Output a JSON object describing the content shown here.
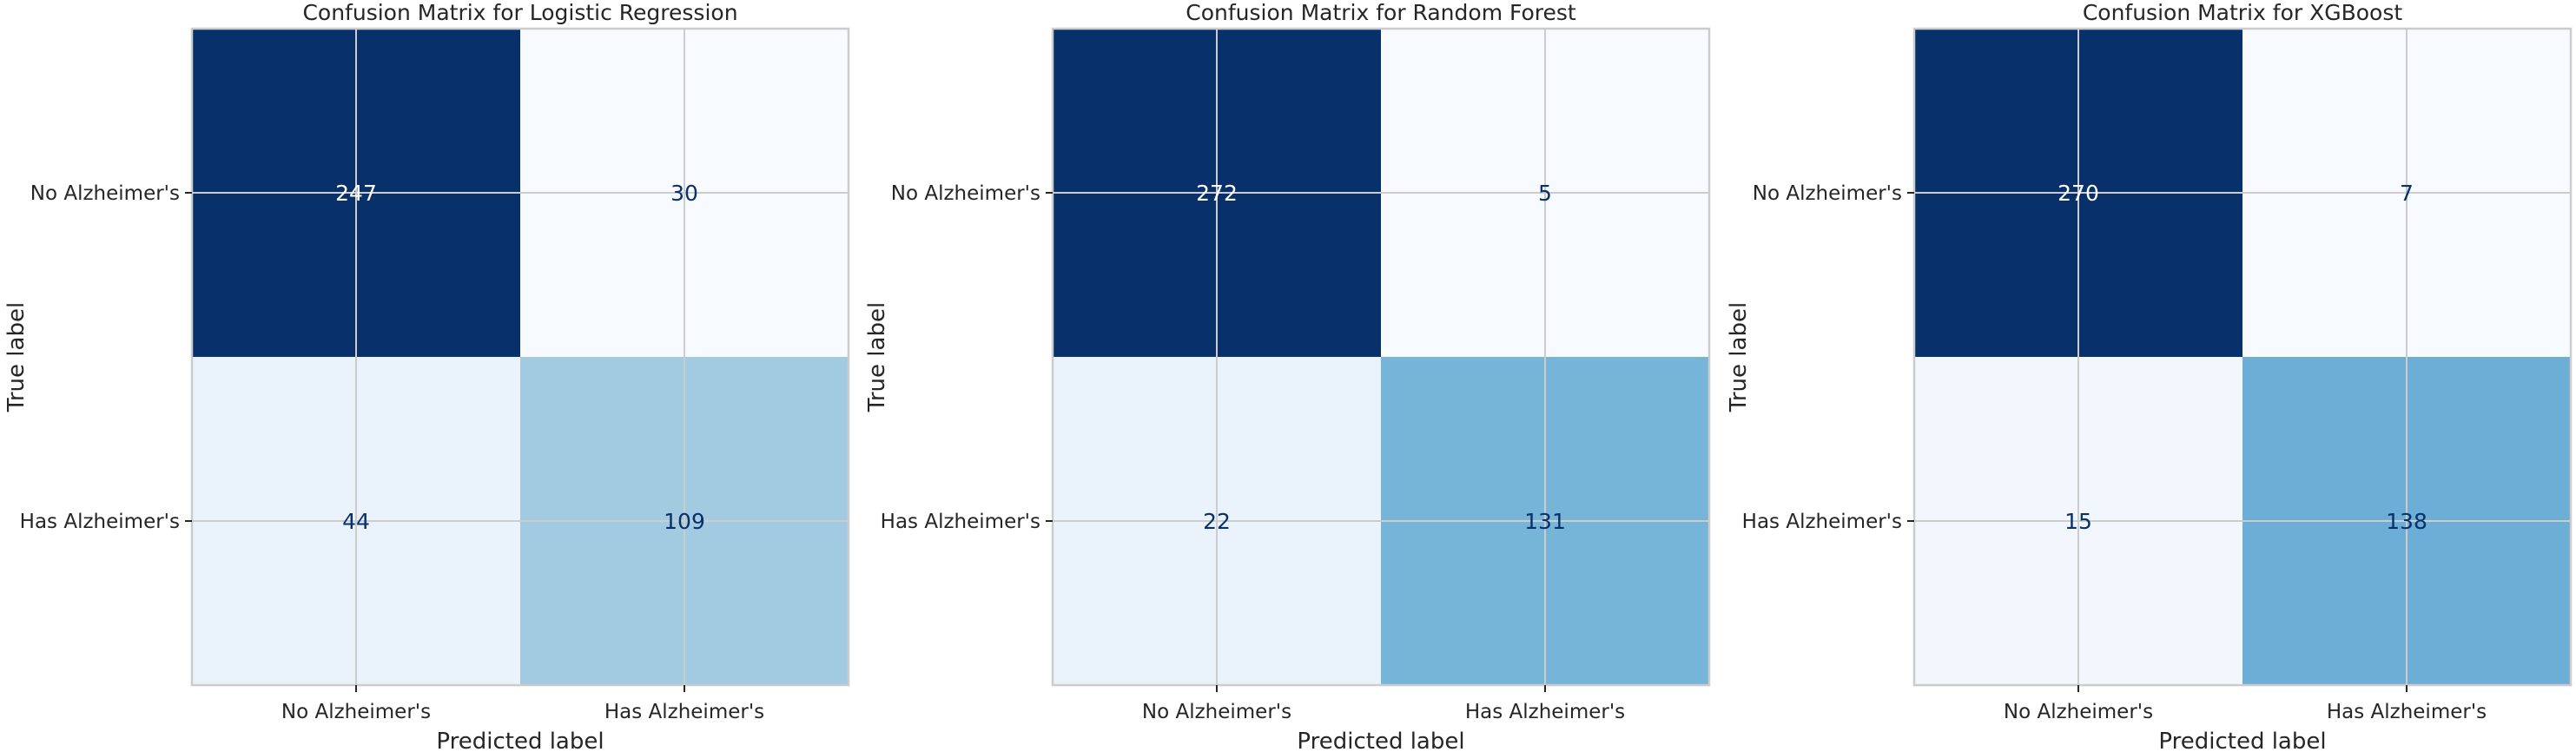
{
  "chart_data": [
    {
      "type": "heatmap",
      "title": "Confusion Matrix for Logistic Regression",
      "xlabel": "Predicted label",
      "ylabel": "True label",
      "x_categories": [
        "No Alzheimer's",
        "Has Alzheimer's"
      ],
      "y_categories": [
        "No Alzheimer's",
        "Has Alzheimer's"
      ],
      "values": [
        [
          247,
          30
        ],
        [
          44,
          109
        ]
      ],
      "colormap": "Blues",
      "grid": true
    },
    {
      "type": "heatmap",
      "title": "Confusion Matrix for Random Forest",
      "xlabel": "Predicted label",
      "ylabel": "True label",
      "x_categories": [
        "No Alzheimer's",
        "Has Alzheimer's"
      ],
      "y_categories": [
        "No Alzheimer's",
        "Has Alzheimer's"
      ],
      "values": [
        [
          272,
          5
        ],
        [
          22,
          131
        ]
      ],
      "colormap": "Blues",
      "grid": true
    },
    {
      "type": "heatmap",
      "title": "Confusion Matrix for XGBoost",
      "xlabel": "Predicted label",
      "ylabel": "True label",
      "x_categories": [
        "No Alzheimer's",
        "Has Alzheimer's"
      ],
      "y_categories": [
        "No Alzheimer's",
        "Has Alzheimer's"
      ],
      "values": [
        [
          270,
          7
        ],
        [
          15,
          138
        ]
      ],
      "colormap": "Blues",
      "grid": true
    }
  ],
  "colors": {
    "cell_low": "#f7fbff",
    "cell_high": "#08306b",
    "text_on_light": "#08306b",
    "text_on_dark": "#ffffff",
    "gridline": "#cccccc",
    "frame": "#cccccc",
    "text": "#262626"
  }
}
